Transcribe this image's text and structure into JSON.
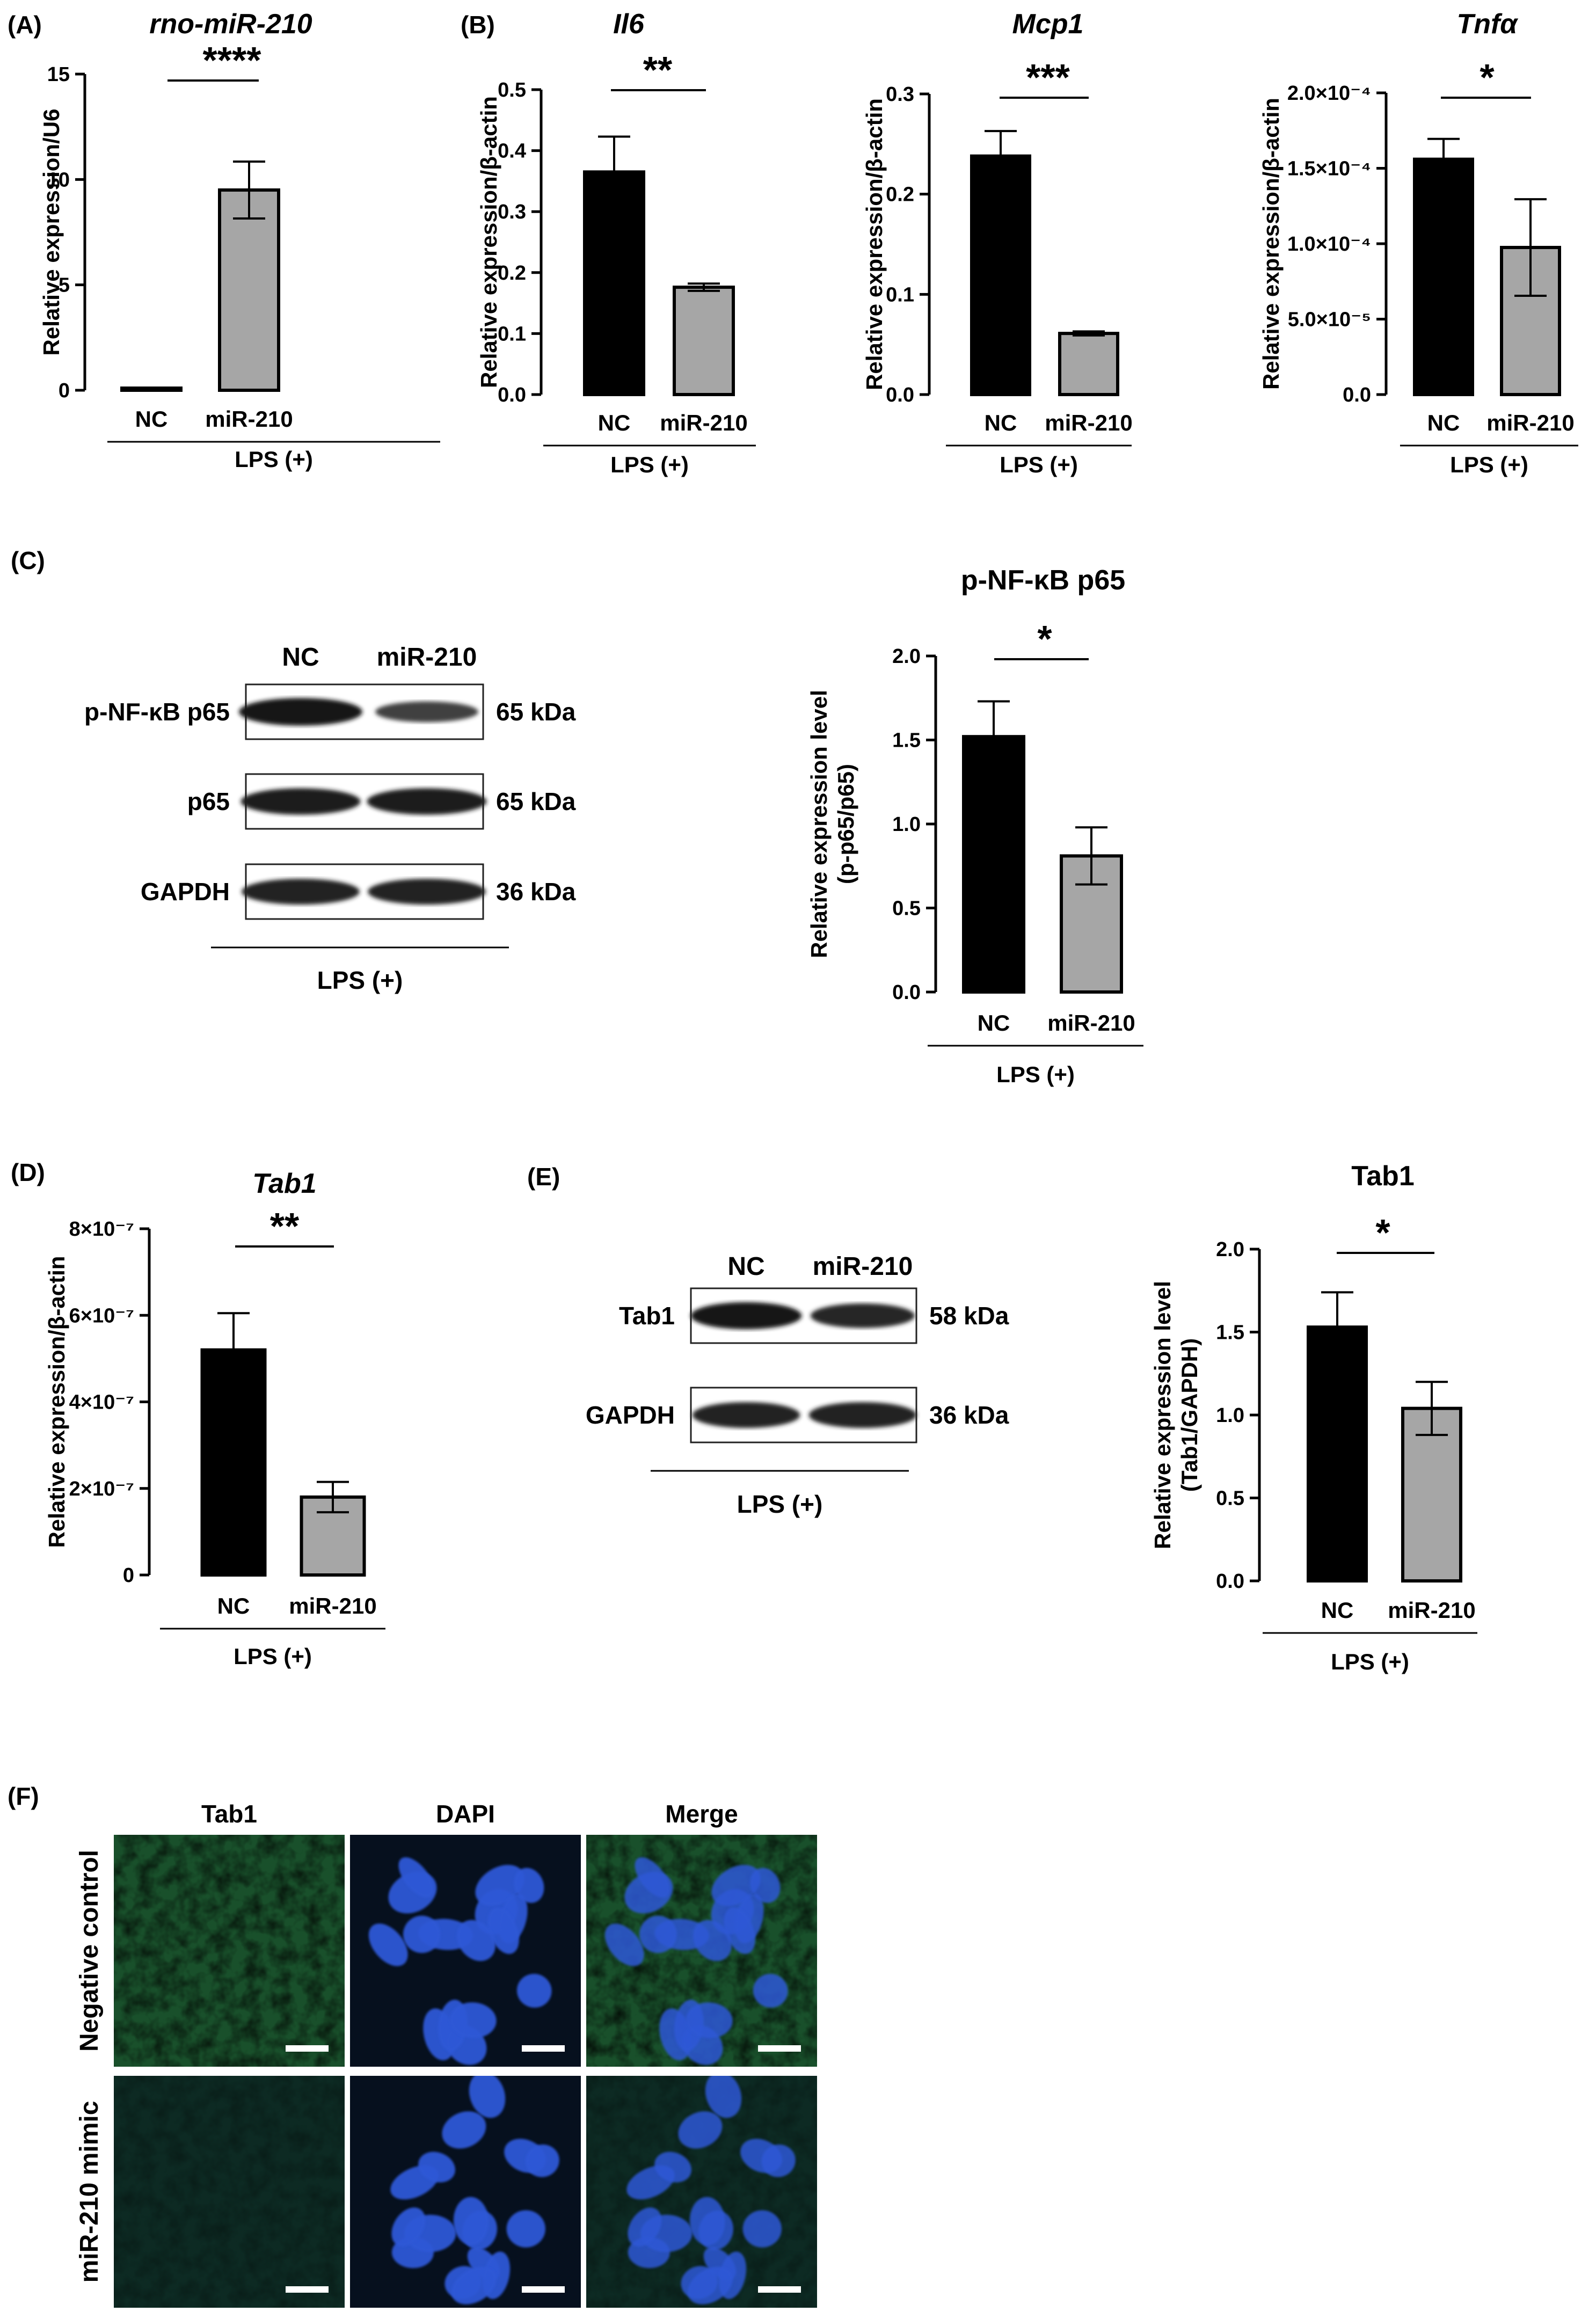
{
  "figure": {
    "panel_labels": [
      "(A)",
      "(B)",
      "(C)",
      "(D)",
      "(E)",
      "(F)"
    ],
    "group_label": "LPS (+)"
  },
  "chart_data": [
    {
      "id": "A",
      "type": "bar",
      "title": "rno-miR-210",
      "title_italic": true,
      "categories": [
        "NC",
        "miR-210"
      ],
      "values": [
        0.05,
        9.5
      ],
      "errors": [
        0.0,
        1.35
      ],
      "ylabel": "Relative expression/U6",
      "ylim": [
        0,
        15
      ],
      "yticks": [
        0,
        5,
        10,
        15
      ],
      "yticklabels": [
        "0",
        "5",
        "10",
        "15"
      ],
      "significance": "****",
      "colors": [
        "#000000",
        "#a6a6a6"
      ]
    },
    {
      "id": "B1",
      "type": "bar",
      "title": "Il6",
      "title_italic": true,
      "categories": [
        "NC",
        "miR-210"
      ],
      "values": [
        0.365,
        0.176
      ],
      "errors": [
        0.058,
        0.006
      ],
      "ylabel": "Relative expression/β-actin",
      "ylim": [
        0,
        0.5
      ],
      "yticks": [
        0,
        0.1,
        0.2,
        0.3,
        0.4,
        0.5
      ],
      "yticklabels": [
        "0.0",
        "0.1",
        "0.2",
        "0.3",
        "0.4",
        "0.5"
      ],
      "significance": "**",
      "colors": [
        "#000000",
        "#a6a6a6"
      ]
    },
    {
      "id": "B2",
      "type": "bar",
      "title": "Mcp1",
      "title_italic": true,
      "categories": [
        "NC",
        "miR-210"
      ],
      "values": [
        0.238,
        0.061
      ],
      "errors": [
        0.025,
        0.002
      ],
      "ylabel": "Relative expression/β-actin",
      "ylim": [
        0,
        0.3
      ],
      "yticks": [
        0,
        0.1,
        0.2,
        0.3
      ],
      "yticklabels": [
        "0.0",
        "0.1",
        "0.2",
        "0.3"
      ],
      "significance": "***",
      "colors": [
        "#000000",
        "#a6a6a6"
      ]
    },
    {
      "id": "B3",
      "type": "bar",
      "title": "Tnfα",
      "title_italic": true,
      "categories": [
        "NC",
        "miR-210"
      ],
      "values": [
        0.000156,
        9.75e-05
      ],
      "errors": [
        1.35e-05,
        3.2e-05
      ],
      "ylabel": "Relative expression/β-actin",
      "ylim": [
        0,
        0.0002
      ],
      "yticks": [
        0,
        5e-05,
        0.0001,
        0.00015,
        0.0002
      ],
      "yticklabels": [
        "0.0",
        "5.0×10⁻⁵",
        "1.0×10⁻⁴",
        "1.5×10⁻⁴",
        "2.0×10⁻⁴"
      ],
      "significance": "*",
      "colors": [
        "#000000",
        "#a6a6a6"
      ]
    },
    {
      "id": "C",
      "type": "bar",
      "title": "p-NF-κB p65",
      "title_italic": false,
      "categories": [
        "NC",
        "miR-210"
      ],
      "values": [
        1.52,
        0.81
      ],
      "errors": [
        0.21,
        0.17
      ],
      "ylabel": "Relative expression level (p-p65/p65)",
      "ylim": [
        0,
        2.0
      ],
      "yticks": [
        0,
        0.5,
        1.0,
        1.5,
        2.0
      ],
      "yticklabels": [
        "0.0",
        "0.5",
        "1.0",
        "1.5",
        "2.0"
      ],
      "significance": "*",
      "colors": [
        "#000000",
        "#a6a6a6"
      ]
    },
    {
      "id": "D",
      "type": "bar",
      "title": "Tab1",
      "title_italic": true,
      "categories": [
        "NC",
        "miR-210"
      ],
      "values": [
        5.2e-07,
        1.8e-07
      ],
      "errors": [
        8.5e-08,
        3.5e-08
      ],
      "ylabel": "Relative expression/β-actin",
      "ylim": [
        0,
        8e-07
      ],
      "yticks": [
        0,
        2e-07,
        4e-07,
        6e-07,
        8e-07
      ],
      "yticklabels": [
        "0",
        "2×10⁻⁷",
        "4×10⁻⁷",
        "6×10⁻⁷",
        "8×10⁻⁷"
      ],
      "significance": "**",
      "colors": [
        "#000000",
        "#a6a6a6"
      ]
    },
    {
      "id": "E",
      "type": "bar",
      "title": "Tab1",
      "title_italic": false,
      "categories": [
        "NC",
        "miR-210"
      ],
      "values": [
        1.53,
        1.04
      ],
      "errors": [
        0.21,
        0.16
      ],
      "ylabel": "Relative expression level (Tab1/GAPDH)",
      "ylim": [
        0,
        2.0
      ],
      "yticks": [
        0,
        0.5,
        1.0,
        1.5,
        2.0
      ],
      "yticklabels": [
        "0.0",
        "0.5",
        "1.0",
        "1.5",
        "2.0"
      ],
      "significance": "*",
      "colors": [
        "#000000",
        "#a6a6a6"
      ]
    }
  ],
  "blots": {
    "C": {
      "lanes": [
        "NC",
        "miR-210"
      ],
      "rows": [
        {
          "protein": "p-NF-κB p65",
          "kda": "65 kDa",
          "intensity": [
            1.0,
            0.45
          ]
        },
        {
          "protein": "p65",
          "kda": "65 kDa",
          "intensity": [
            0.9,
            0.9
          ]
        },
        {
          "protein": "GAPDH",
          "kda": "36 kDa",
          "intensity": [
            0.85,
            0.85
          ]
        }
      ]
    },
    "E": {
      "lanes": [
        "NC",
        "miR-210"
      ],
      "rows": [
        {
          "protein": "Tab1",
          "kda": "58 kDa",
          "intensity": [
            0.95,
            0.75
          ]
        },
        {
          "protein": "GAPDH",
          "kda": "36 kDa",
          "intensity": [
            0.85,
            0.85
          ]
        }
      ]
    }
  },
  "micrographs": {
    "columns": [
      "Tab1",
      "DAPI",
      "Merge"
    ],
    "rows": [
      "Negative control",
      "miR-210 mimic"
    ],
    "colors": {
      "tab1": "#2f9a3a",
      "dapi": "#2e58d6",
      "background": "#06101e"
    },
    "tab1_intensity": [
      0.85,
      0.35
    ]
  }
}
